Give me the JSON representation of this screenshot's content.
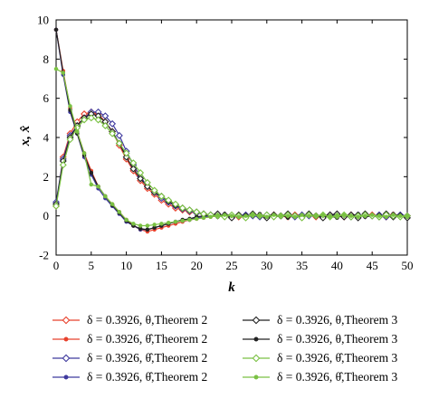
{
  "chart_data": {
    "type": "line",
    "xlabel": "k",
    "ylabel": "x, x̂",
    "xlim": [
      0,
      50
    ],
    "ylim": [
      -2,
      10
    ],
    "xticks": [
      "0",
      "5",
      "10",
      "15",
      "20",
      "25",
      "30",
      "35",
      "40",
      "45",
      "50"
    ],
    "yticks": [
      "-2",
      "0",
      "2",
      "4",
      "6",
      "8",
      "10"
    ],
    "grid": false,
    "legend_position": "bottom",
    "series": [
      {
        "name": "δ = 0.3926, θ,Theorem 2",
        "symbol": "θ",
        "theorem": "Theorem 2",
        "marker": "diamond-open",
        "color": "#e8412c",
        "values": [
          0.5,
          3.0,
          4.2,
          4.8,
          5.2,
          5.3,
          5.2,
          4.8,
          4.3,
          3.6,
          2.9,
          2.3,
          1.8,
          1.4,
          1.1,
          0.8,
          0.6,
          0.4,
          0.3,
          0.2,
          0.15,
          0.1,
          0.05,
          0.0,
          0.05,
          0.0,
          -0.05,
          0.0,
          0.05,
          0.0,
          0.0,
          0.05,
          0.0,
          -0.05,
          0.05,
          0.0,
          0.05,
          -0.05,
          0.0,
          0.05,
          0.0,
          -0.05,
          0.05,
          0.0,
          0.0,
          0.05,
          0.0,
          -0.05,
          0.05,
          0.0,
          0.0
        ]
      },
      {
        "name": "δ = 0.3926, θ̂,Theorem 2",
        "symbol": "θ̂",
        "theorem": "Theorem 2",
        "marker": "dot",
        "color": "#e8412c",
        "values": [
          9.5,
          7.4,
          5.5,
          4.3,
          3.2,
          2.3,
          1.5,
          1.0,
          0.6,
          0.2,
          -0.2,
          -0.5,
          -0.7,
          -0.8,
          -0.7,
          -0.6,
          -0.5,
          -0.4,
          -0.3,
          -0.2,
          -0.15,
          -0.1,
          -0.05,
          0.0,
          0.05,
          0.0,
          -0.05,
          0.05,
          0.0,
          0.0,
          0.05,
          0.0,
          -0.05,
          0.0,
          0.05,
          0.0,
          0.0,
          0.05,
          -0.05,
          0.0,
          0.05,
          0.0,
          0.0,
          -0.05,
          0.05,
          0.0,
          0.0,
          0.05,
          -0.05,
          0.0,
          0.0
        ]
      },
      {
        "name": "δ = 0.3926, θ̂,Theorem 2",
        "symbol": "θ̂",
        "theorem": "Theorem 2",
        "marker": "diamond-open",
        "color": "#3f3a9e",
        "values": [
          0.7,
          2.9,
          4.1,
          4.6,
          5.0,
          5.3,
          5.3,
          5.1,
          4.7,
          4.1,
          3.3,
          2.6,
          2.0,
          1.5,
          1.2,
          0.9,
          0.7,
          0.5,
          0.35,
          0.25,
          0.15,
          0.1,
          0.05,
          0.0,
          0.05,
          -0.05,
          0.0,
          0.05,
          0.0,
          -0.05,
          0.05,
          0.0,
          0.0,
          0.05,
          -0.05,
          0.05,
          0.0,
          0.0,
          -0.05,
          0.05,
          0.0,
          0.0,
          -0.05,
          0.05,
          0.0,
          0.0,
          0.05,
          -0.05,
          0.0,
          0.05,
          0.0
        ]
      },
      {
        "name": "δ = 0.3926, θ̂,Theorem 2",
        "symbol": "θ̂",
        "theorem": "Theorem 2",
        "marker": "dot",
        "color": "#3f3a9e",
        "values": [
          9.5,
          7.2,
          5.3,
          4.2,
          3.0,
          2.1,
          1.4,
          0.9,
          0.5,
          0.1,
          -0.3,
          -0.5,
          -0.7,
          -0.7,
          -0.6,
          -0.5,
          -0.4,
          -0.3,
          -0.25,
          -0.2,
          -0.1,
          -0.05,
          0.0,
          0.05,
          0.0,
          -0.05,
          0.0,
          0.05,
          0.0,
          0.0,
          0.05,
          0.0,
          -0.05,
          0.05,
          0.0,
          0.0,
          0.05,
          0.0,
          -0.05,
          0.0,
          0.05,
          0.0,
          0.0,
          -0.05,
          0.05,
          0.0,
          0.0,
          0.05,
          0.0,
          -0.05,
          0.0
        ]
      },
      {
        "name": "δ = 0.3926, θ,Theorem 3",
        "symbol": "θ",
        "theorem": "Theorem 3",
        "marker": "diamond-open",
        "color": "#222222",
        "values": [
          0.6,
          2.8,
          4.0,
          4.6,
          5.0,
          5.2,
          5.1,
          4.8,
          4.3,
          3.7,
          3.0,
          2.4,
          1.9,
          1.5,
          1.2,
          1.0,
          0.75,
          0.55,
          0.4,
          0.3,
          0.2,
          0.1,
          0.05,
          0.1,
          0.0,
          -0.1,
          0.05,
          -0.05,
          0.1,
          0.0,
          -0.1,
          0.05,
          0.0,
          0.1,
          0.0,
          -0.05,
          0.1,
          0.0,
          -0.1,
          0.05,
          0.1,
          -0.05,
          0.05,
          -0.1,
          0.1,
          0.0,
          -0.05,
          0.1,
          -0.05,
          0.0,
          -0.1
        ]
      },
      {
        "name": "δ = 0.3926, θ,Theorem 3",
        "symbol": "θ",
        "theorem": "Theorem 3",
        "marker": "dot",
        "color": "#222222",
        "values": [
          9.5,
          7.3,
          5.4,
          4.2,
          3.1,
          2.2,
          1.5,
          1.0,
          0.55,
          0.15,
          -0.25,
          -0.5,
          -0.65,
          -0.7,
          -0.6,
          -0.5,
          -0.4,
          -0.3,
          -0.2,
          -0.15,
          -0.05,
          0.0,
          0.05,
          -0.05,
          0.1,
          0.0,
          -0.05,
          0.05,
          0.0,
          0.1,
          -0.05,
          0.0,
          0.05,
          -0.1,
          0.05,
          0.0,
          0.1,
          -0.05,
          0.05,
          0.0,
          -0.1,
          0.05,
          0.0,
          0.1,
          -0.05,
          0.0,
          0.05,
          -0.05,
          0.1,
          0.0,
          -0.05
        ]
      },
      {
        "name": "δ = 0.3926, θ̂,Theorem 3",
        "symbol": "θ̂",
        "theorem": "Theorem 3",
        "marker": "diamond-open",
        "color": "#7ac143",
        "values": [
          0.5,
          2.6,
          3.9,
          4.5,
          4.9,
          5.0,
          4.9,
          4.6,
          4.2,
          3.7,
          3.2,
          2.7,
          2.2,
          1.7,
          1.3,
          1.0,
          0.8,
          0.6,
          0.4,
          0.3,
          0.2,
          0.1,
          0.05,
          0.0,
          -0.05,
          0.05,
          0.0,
          -0.1,
          0.05,
          0.0,
          0.05,
          -0.05,
          0.0,
          0.05,
          0.0,
          -0.1,
          0.05,
          0.0,
          0.05,
          -0.05,
          0.0,
          0.05,
          -0.05,
          0.0,
          0.05,
          0.0,
          -0.05,
          0.05,
          0.0,
          -0.05,
          0.0
        ]
      },
      {
        "name": "δ = 0.3926, θ̂,Theorem 3",
        "symbol": "θ̂",
        "theorem": "Theorem 3",
        "marker": "dot",
        "color": "#7ac143",
        "values": [
          7.5,
          7.3,
          5.6,
          4.3,
          3.2,
          1.6,
          1.5,
          1.0,
          0.6,
          0.2,
          -0.2,
          -0.4,
          -0.5,
          -0.5,
          -0.45,
          -0.4,
          -0.35,
          -0.3,
          -0.25,
          -0.2,
          -0.15,
          -0.1,
          -0.05,
          0.0,
          0.05,
          0.0,
          -0.05,
          0.0,
          0.05,
          0.0,
          -0.05,
          0.05,
          0.0,
          0.0,
          -0.05,
          0.05,
          0.0,
          0.0,
          0.05,
          -0.05,
          0.0,
          0.05,
          0.0,
          -0.05,
          0.0,
          0.05,
          0.0,
          -0.05,
          0.05,
          0.0,
          0.0
        ]
      }
    ]
  }
}
